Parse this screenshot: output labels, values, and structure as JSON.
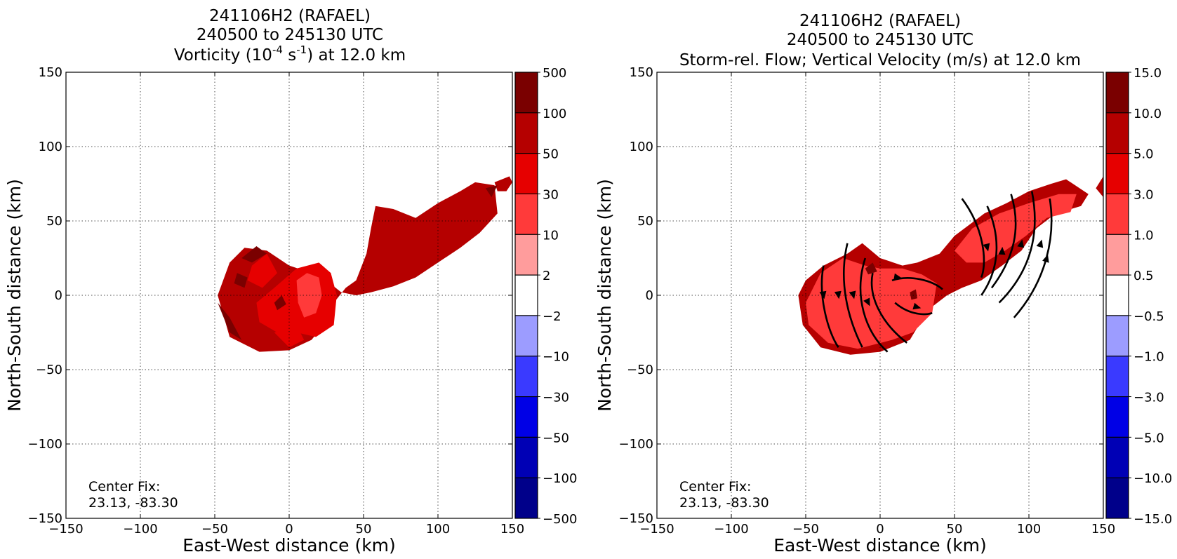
{
  "chart_data": [
    {
      "type": "heatmap",
      "title": [
        "241106H2 (RAFAEL)",
        "240500 to 245130 UTC"
      ],
      "subtitle": {
        "pre": "Vorticity (10",
        "sup1": "-4",
        "mid": " s",
        "sup2": "-1",
        "post": ") at 12.0 km"
      },
      "xlabel": "East-West distance (km)",
      "ylabel": "North-South distance (km)",
      "xlim": [
        -150,
        150
      ],
      "ylim": [
        -150,
        150
      ],
      "xticks": [
        -150,
        -100,
        -50,
        0,
        50,
        100,
        150
      ],
      "yticks": [
        -150,
        -100,
        -50,
        0,
        50,
        100,
        150
      ],
      "xtick_labels": [
        "−150",
        "−100",
        "−50",
        "0",
        "50",
        "100",
        "150"
      ],
      "ytick_labels": [
        "−150",
        "−100",
        "−50",
        "0",
        "50",
        "100",
        "150"
      ],
      "grid": true,
      "annotation": [
        "Center Fix:",
        "23.13, -83.30"
      ],
      "colorbar": {
        "levels": [
          "500",
          "100",
          "50",
          "30",
          "10",
          "2",
          "−2",
          "−10",
          "−30",
          "−50",
          "−100",
          "−500"
        ],
        "colors": [
          "#7a0000",
          "#b50000",
          "#e60000",
          "#ff3a3a",
          "#ff9c9c",
          "#ffffff",
          "#9c9cff",
          "#3a3aff",
          "#0000e6",
          "#0000b5",
          "#00008a"
        ]
      },
      "regions": [
        {
          "level": 1,
          "poly": [
            [
              58,
              60
            ],
            [
              70,
              58
            ],
            [
              85,
              52
            ],
            [
              100,
              62
            ],
            [
              115,
              70
            ],
            [
              125,
              76
            ],
            [
              138,
              74
            ],
            [
              140,
              55
            ],
            [
              128,
              42
            ],
            [
              115,
              32
            ],
            [
              100,
              22
            ],
            [
              85,
              12
            ],
            [
              70,
              6
            ],
            [
              55,
              2
            ],
            [
              45,
              0
            ],
            [
              35,
              2
            ],
            [
              25,
              10
            ],
            [
              15,
              15
            ],
            [
              0,
              20
            ],
            [
              -15,
              30
            ],
            [
              -30,
              32
            ],
            [
              -40,
              22
            ],
            [
              -48,
              0
            ],
            [
              -40,
              -28
            ],
            [
              -20,
              -38
            ],
            [
              0,
              -37
            ],
            [
              15,
              -30
            ],
            [
              25,
              -18
            ],
            [
              30,
              -5
            ],
            [
              38,
              5
            ],
            [
              45,
              10
            ],
            [
              52,
              28
            ],
            [
              55,
              45
            ]
          ]
        },
        {
          "level": 1,
          "poly": [
            [
              138,
              76
            ],
            [
              148,
              80
            ],
            [
              150,
              76
            ],
            [
              146,
              70
            ],
            [
              140,
              70
            ]
          ]
        },
        {
          "level": 2,
          "poly": [
            [
              -25,
              20
            ],
            [
              -15,
              28
            ],
            [
              -8,
              15
            ],
            [
              -18,
              5
            ],
            [
              -28,
              10
            ]
          ]
        },
        {
          "level": 2,
          "poly": [
            [
              -22,
              -5
            ],
            [
              -10,
              5
            ],
            [
              5,
              18
            ],
            [
              20,
              22
            ],
            [
              28,
              15
            ],
            [
              32,
              0
            ],
            [
              30,
              -20
            ],
            [
              18,
              -28
            ],
            [
              5,
              -25
            ],
            [
              -8,
              -25
            ],
            [
              -20,
              -18
            ]
          ]
        },
        {
          "level": 2,
          "poly": [
            [
              -10,
              -25
            ],
            [
              0,
              -35
            ],
            [
              10,
              -30
            ],
            [
              5,
              -20
            ]
          ]
        },
        {
          "level": 3,
          "poly": [
            [
              5,
              10
            ],
            [
              12,
              15
            ],
            [
              20,
              12
            ],
            [
              22,
              0
            ],
            [
              18,
              -12
            ],
            [
              10,
              -15
            ],
            [
              6,
              -5
            ]
          ]
        },
        {
          "level": 0,
          "poly": [
            [
              -32,
              25
            ],
            [
              -22,
              33
            ],
            [
              -15,
              28
            ],
            [
              -25,
              22
            ]
          ]
        },
        {
          "level": 0,
          "poly": [
            [
              -35,
              15
            ],
            [
              -28,
              12
            ],
            [
              -30,
              5
            ],
            [
              -37,
              8
            ]
          ]
        },
        {
          "level": 0,
          "poly": [
            [
              -48,
              -5
            ],
            [
              -40,
              -25
            ],
            [
              -32,
              -30
            ],
            [
              -40,
              -15
            ]
          ]
        },
        {
          "level": 0,
          "poly": [
            [
              132,
              72
            ],
            [
              140,
              74
            ],
            [
              136,
              66
            ]
          ]
        },
        {
          "level": 0,
          "poly": [
            [
              -10,
              -5
            ],
            [
              -5,
              0
            ],
            [
              -2,
              -6
            ],
            [
              -8,
              -10
            ]
          ]
        }
      ]
    },
    {
      "type": "heatmap",
      "title": [
        "241106H2 (RAFAEL)",
        "240500 to 245130 UTC"
      ],
      "subtitle": {
        "text": "Storm-rel. Flow; Vertical Velocity (m/s) at 12.0 km"
      },
      "xlabel": "East-West distance (km)",
      "ylabel": "North-South distance (km)",
      "xlim": [
        -150,
        150
      ],
      "ylim": [
        -150,
        150
      ],
      "xticks": [
        -150,
        -100,
        -50,
        0,
        50,
        100,
        150
      ],
      "yticks": [
        -150,
        -100,
        -50,
        0,
        50,
        100,
        150
      ],
      "xtick_labels": [
        "−150",
        "−100",
        "−50",
        "0",
        "50",
        "100",
        "150"
      ],
      "ytick_labels": [
        "−150",
        "−100",
        "−50",
        "0",
        "50",
        "100",
        "150"
      ],
      "grid": true,
      "annotation": [
        "Center Fix:",
        "23.13, -83.30"
      ],
      "colorbar": {
        "levels": [
          "15.0",
          "10.0",
          "5.0",
          "3.0",
          "1.0",
          "0.5",
          "−0.5",
          "−1.0",
          "−3.0",
          "−5.0",
          "−10.0",
          "−15.0"
        ],
        "colors": [
          "#7a0000",
          "#b50000",
          "#e60000",
          "#ff3a3a",
          "#ff9c9c",
          "#ffffff",
          "#9c9cff",
          "#3a3aff",
          "#0000e6",
          "#0000b5",
          "#00008a"
        ]
      },
      "regions": [
        {
          "level": 1,
          "poly": [
            [
              50,
              40
            ],
            [
              70,
              55
            ],
            [
              85,
              62
            ],
            [
              100,
              70
            ],
            [
              115,
              75
            ],
            [
              125,
              78
            ],
            [
              140,
              68
            ],
            [
              135,
              60
            ],
            [
              118,
              55
            ],
            [
              105,
              45
            ],
            [
              95,
              30
            ],
            [
              82,
              20
            ],
            [
              68,
              10
            ],
            [
              55,
              5
            ],
            [
              45,
              0
            ],
            [
              32,
              -10
            ],
            [
              20,
              -30
            ],
            [
              0,
              -38
            ],
            [
              -20,
              -40
            ],
            [
              -40,
              -35
            ],
            [
              -52,
              -20
            ],
            [
              -55,
              0
            ],
            [
              -50,
              10
            ],
            [
              -38,
              20
            ],
            [
              -22,
              28
            ],
            [
              -12,
              35
            ],
            [
              0,
              25
            ],
            [
              15,
              20
            ],
            [
              25,
              22
            ],
            [
              40,
              28
            ]
          ]
        },
        {
          "level": 1,
          "poly": [
            [
              145,
              72
            ],
            [
              150,
              80
            ],
            [
              150,
              66
            ]
          ]
        },
        {
          "level": 3,
          "poly": [
            [
              -50,
              -5
            ],
            [
              -40,
              15
            ],
            [
              -25,
              25
            ],
            [
              -10,
              20
            ],
            [
              0,
              18
            ],
            [
              15,
              18
            ],
            [
              28,
              14
            ],
            [
              38,
              8
            ],
            [
              35,
              -12
            ],
            [
              22,
              -25
            ],
            [
              8,
              -30
            ],
            [
              -15,
              -36
            ],
            [
              -35,
              -32
            ],
            [
              -48,
              -20
            ]
          ]
        },
        {
          "level": 3,
          "poly": [
            [
              50,
              30
            ],
            [
              62,
              45
            ],
            [
              80,
              55
            ],
            [
              100,
              62
            ],
            [
              120,
              68
            ],
            [
              132,
              68
            ],
            [
              128,
              56
            ],
            [
              112,
              52
            ],
            [
              98,
              40
            ],
            [
              84,
              30
            ],
            [
              70,
              22
            ],
            [
              58,
              22
            ]
          ]
        },
        {
          "level": 0,
          "poly": [
            [
              20,
              2
            ],
            [
              24,
              4
            ],
            [
              25,
              -2
            ],
            [
              21,
              -3
            ]
          ]
        },
        {
          "level": 0,
          "poly": [
            [
              -10,
              18
            ],
            [
              -5,
              22
            ],
            [
              -2,
              16
            ],
            [
              -8,
              14
            ]
          ]
        }
      ],
      "streamlines": [
        {
          "path": [
            [
              -38,
              20
            ],
            [
              -42,
              0
            ],
            [
              -35,
              -25
            ],
            [
              -28,
              -35
            ]
          ],
          "arrow": [
            -38,
            0
          ]
        },
        {
          "path": [
            [
              -22,
              35
            ],
            [
              -28,
              10
            ],
            [
              -22,
              -15
            ],
            [
              -12,
              -35
            ]
          ],
          "arrow": [
            -28,
            0
          ]
        },
        {
          "path": [
            [
              -10,
              25
            ],
            [
              -18,
              0
            ],
            [
              -10,
              -25
            ],
            [
              5,
              -38
            ]
          ],
          "arrow": [
            -18,
            0
          ]
        },
        {
          "path": [
            [
              -5,
              15
            ],
            [
              -8,
              0
            ],
            [
              0,
              -18
            ],
            [
              18,
              -32
            ]
          ],
          "arrow": [
            -8,
            -5
          ]
        },
        {
          "path": [
            [
              8,
              10
            ],
            [
              20,
              14
            ],
            [
              35,
              10
            ],
            [
              42,
              4
            ]
          ],
          "arrow": [
            12,
            12
          ]
        },
        {
          "path": [
            [
              10,
              -5
            ],
            [
              18,
              -12
            ],
            [
              28,
              -14
            ],
            [
              35,
              -12
            ]
          ],
          "arrow": [
            25,
            -8
          ]
        },
        {
          "path": [
            [
              55,
              65
            ],
            [
              70,
              45
            ],
            [
              72,
              22
            ],
            [
              68,
              12
            ]
          ],
          "arrow": [
            72,
            32
          ]
        },
        {
          "path": [
            [
              68,
              0
            ],
            [
              82,
              20
            ],
            [
              80,
              42
            ],
            [
              72,
              60
            ]
          ],
          "arrow": [
            82,
            30
          ]
        },
        {
          "path": [
            [
              75,
              5
            ],
            [
              90,
              25
            ],
            [
              95,
              45
            ],
            [
              88,
              68
            ]
          ],
          "arrow": [
            95,
            35
          ]
        },
        {
          "path": [
            [
              80,
              -5
            ],
            [
              100,
              15
            ],
            [
              108,
              40
            ],
            [
              102,
              70
            ]
          ],
          "arrow": [
            108,
            35
          ]
        },
        {
          "path": [
            [
              90,
              -15
            ],
            [
              112,
              10
            ],
            [
              118,
              40
            ],
            [
              114,
              65
            ]
          ],
          "arrow": [
            112,
            25
          ]
        }
      ]
    }
  ]
}
